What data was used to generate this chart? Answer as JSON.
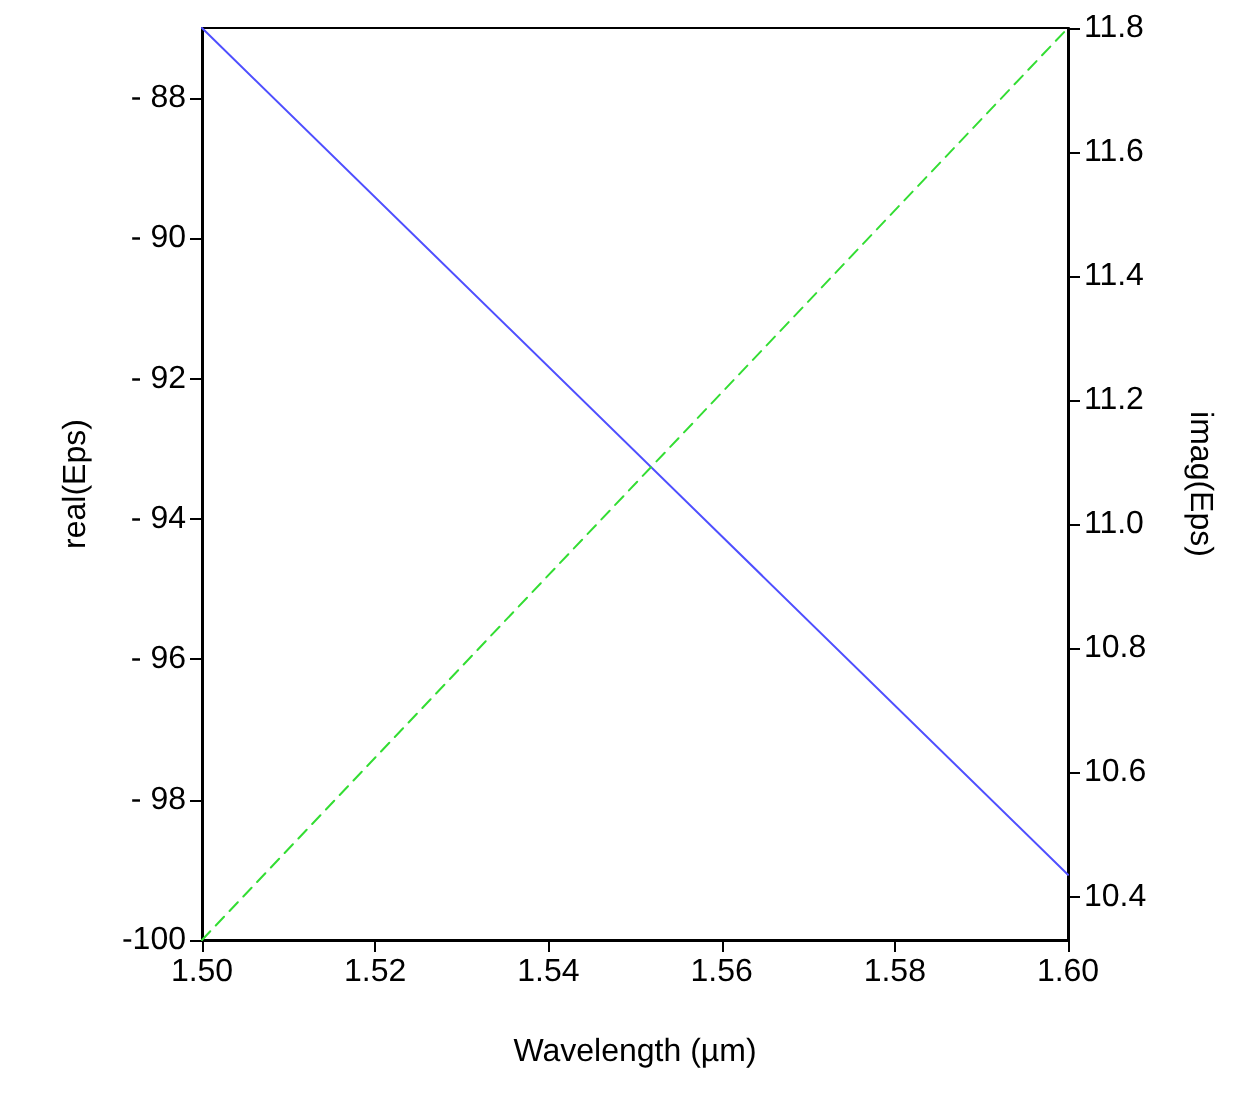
{
  "chart_data": {
    "type": "line",
    "xlabel": "Wavelength (µm)",
    "ylabel": "real(Eps)",
    "y2label": "imag(Eps)",
    "x": [
      1.5,
      1.6
    ],
    "series": [
      {
        "color": "#4f4fff",
        "values": [
          -87.0,
          -99.07
        ],
        "line_style": "solid"
      },
      {
        "color": "#33dd33",
        "values": [
          10.33,
          11.8
        ],
        "axis": "y2",
        "line_style": "dashed"
      }
    ],
    "xlim": [
      1.5,
      1.6
    ],
    "xticks": [
      {
        "value": 1.5,
        "label": "1.50"
      },
      {
        "value": 1.52,
        "label": "1.52"
      },
      {
        "value": 1.54,
        "label": "1.54"
      },
      {
        "value": 1.56,
        "label": "1.56"
      },
      {
        "value": 1.58,
        "label": "1.58"
      },
      {
        "value": 1.6,
        "label": "1.60"
      }
    ],
    "ylim": [
      -100,
      -87
    ],
    "yticks": [
      {
        "value": -100,
        "label": "-100"
      },
      {
        "value": -98,
        "label": "- 98"
      },
      {
        "value": -96,
        "label": "- 96"
      },
      {
        "value": -94,
        "label": "- 94"
      },
      {
        "value": -92,
        "label": "- 92"
      },
      {
        "value": -90,
        "label": "- 90"
      },
      {
        "value": -88,
        "label": "- 88"
      }
    ],
    "y2lim": [
      10.33,
      11.8
    ],
    "y2ticks": [
      10.4,
      10.6,
      10.8,
      {
        "value": 11.0,
        "label": "11.0"
      },
      11.2,
      11.4,
      11.6,
      11.8
    ],
    "marker": "none"
  }
}
